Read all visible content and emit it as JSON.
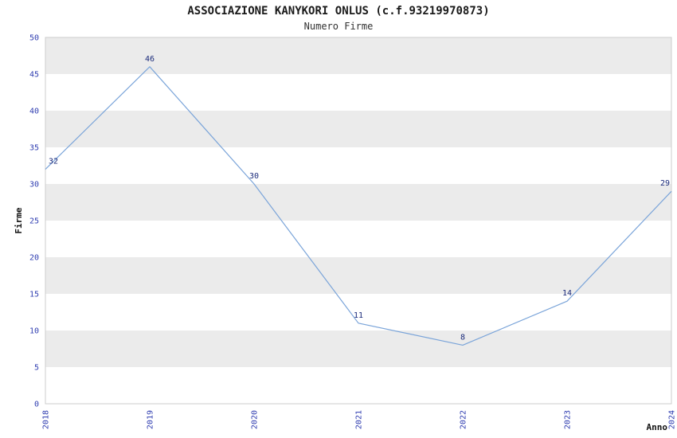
{
  "chart_data": {
    "type": "line",
    "title": "ASSOCIAZIONE KANYKORI ONLUS (c.f.93219970873)",
    "subtitle": "Numero Firme",
    "xlabel": "Anno",
    "ylabel": "Firme",
    "categories": [
      "2018",
      "2019",
      "2020",
      "2021",
      "2022",
      "2023",
      "2024"
    ],
    "values": [
      32,
      46,
      30,
      11,
      8,
      14,
      29
    ],
    "ylim": [
      0,
      50
    ],
    "ytick_step": 5,
    "yticks": [
      0,
      5,
      10,
      15,
      20,
      25,
      30,
      35,
      40,
      45,
      50
    ],
    "grid": "alternating-horizontal-bands",
    "legend": "none",
    "point_labels_visible": true,
    "x_tick_rotation_deg": -90,
    "colors": {
      "line": "#7aa4d9",
      "band": "#ebebeb",
      "frame": "#cccccc",
      "tick_label": "#2f3db0",
      "point_label": "#1a2a7a",
      "title": "#1a1a1a",
      "subtitle": "#333333",
      "axis_label": "#111111",
      "background": "#ffffff"
    }
  }
}
